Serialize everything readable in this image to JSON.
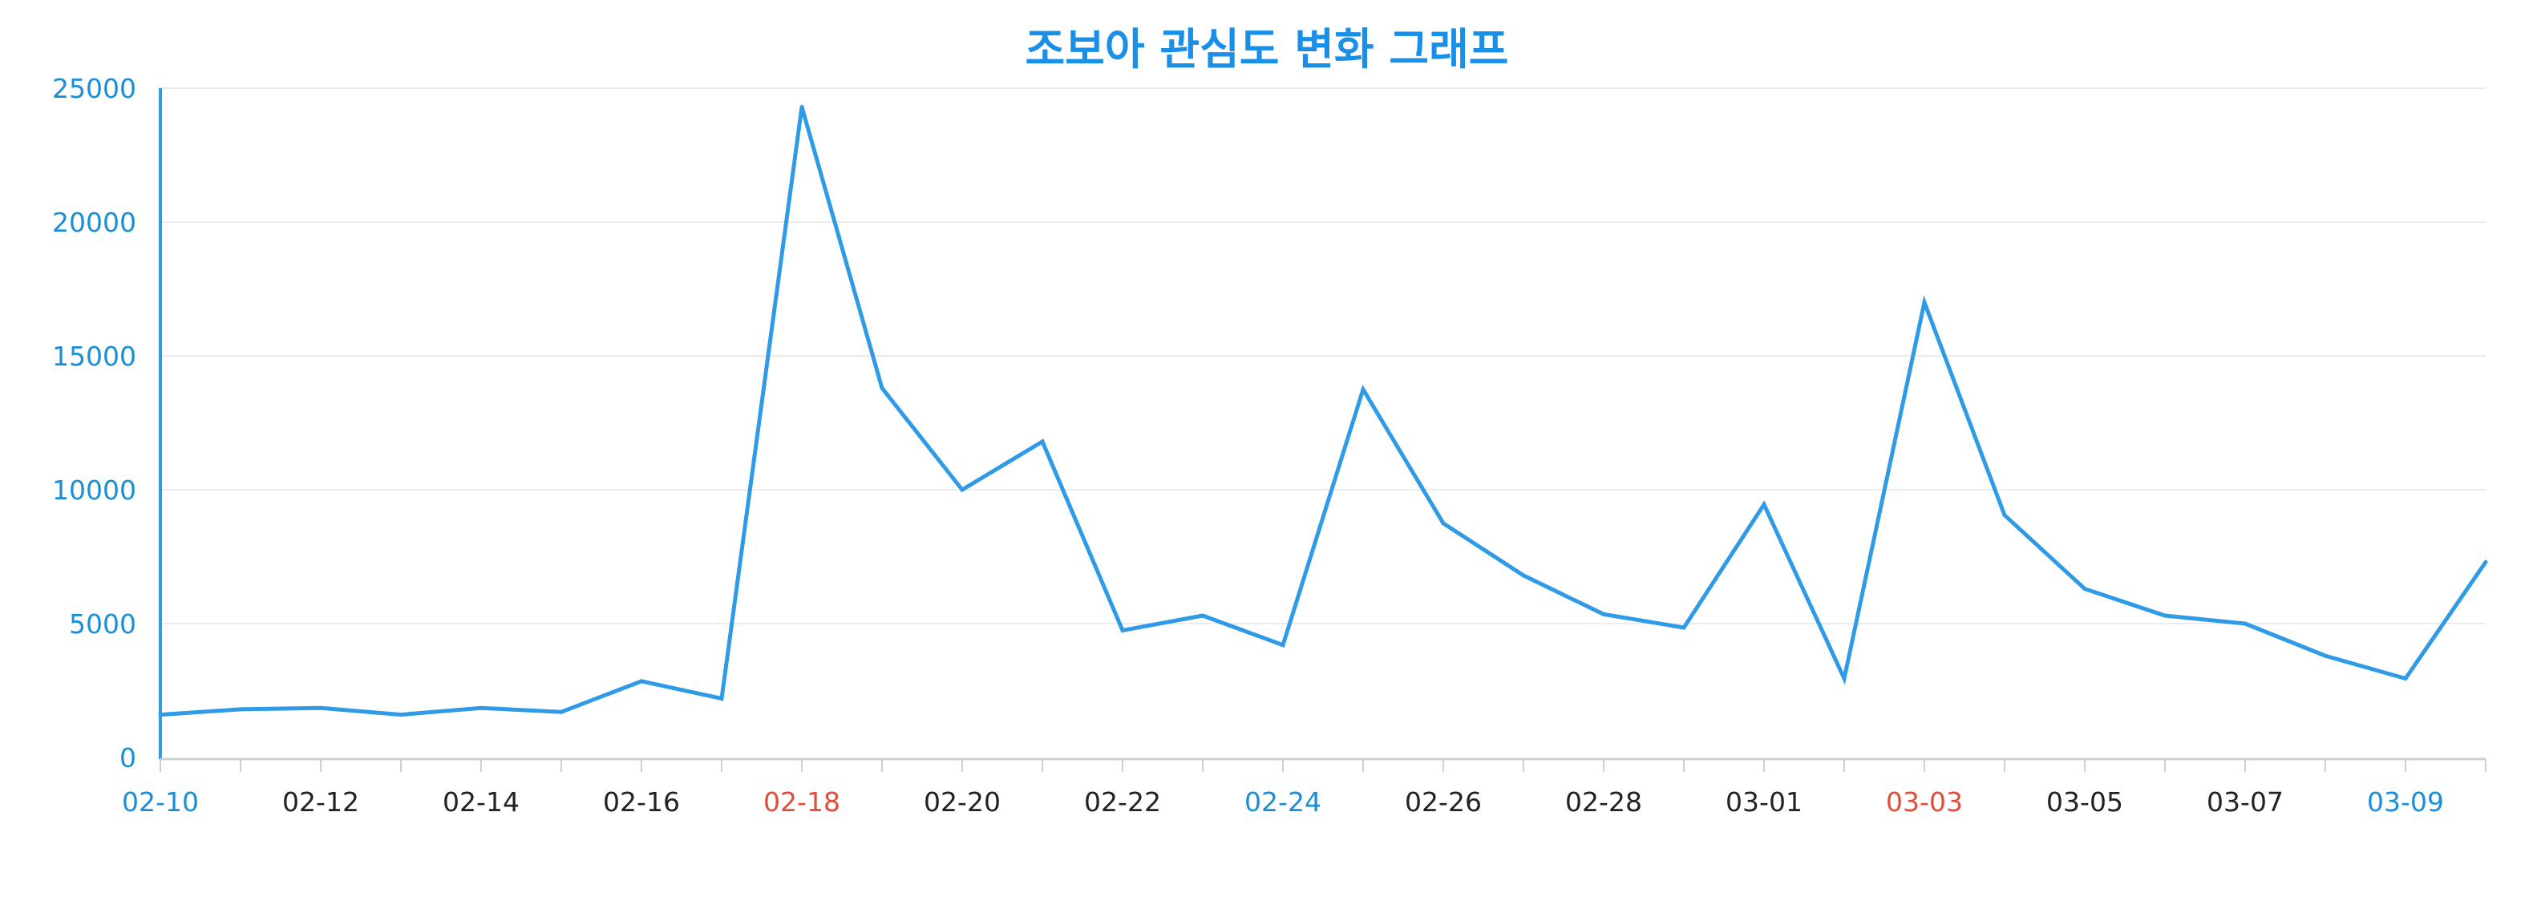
{
  "colors": {
    "series": "#2f9be6",
    "axis": "#2f9be6",
    "ytick": "#1a8fd8",
    "xtick_default": "#222222",
    "xtick_blue": "#1a8fd8",
    "xtick_red": "#e04e3a",
    "grid": "#ececec",
    "xaxis_line": "#d0d0d0",
    "title": "#1a8fe8"
  },
  "chart_data": {
    "type": "line",
    "title": "조보아 관심도 변화 그래프",
    "xlabel": "",
    "ylabel": "",
    "ylim": [
      0,
      25000
    ],
    "yticks": [
      0,
      5000,
      10000,
      15000,
      20000,
      25000
    ],
    "grid": true,
    "legend": "none",
    "x": [
      "02-10",
      "02-11",
      "02-12",
      "02-13",
      "02-14",
      "02-15",
      "02-16",
      "02-17",
      "02-18",
      "02-19",
      "02-20",
      "02-21",
      "02-22",
      "02-23",
      "02-24",
      "02-25",
      "02-26",
      "02-27",
      "02-28",
      "02-29",
      "03-01",
      "03-02",
      "03-03",
      "03-04",
      "03-05",
      "03-06",
      "03-07",
      "03-08",
      "03-09",
      "03-10"
    ],
    "xtick_labels": [
      {
        "label": "02-10",
        "color": "blue"
      },
      {
        "label": "02-12",
        "color": "default"
      },
      {
        "label": "02-14",
        "color": "default"
      },
      {
        "label": "02-16",
        "color": "default"
      },
      {
        "label": "02-18",
        "color": "red"
      },
      {
        "label": "02-20",
        "color": "default"
      },
      {
        "label": "02-22",
        "color": "default"
      },
      {
        "label": "02-24",
        "color": "blue"
      },
      {
        "label": "02-26",
        "color": "default"
      },
      {
        "label": "02-28",
        "color": "default"
      },
      {
        "label": "03-01",
        "color": "default"
      },
      {
        "label": "03-03",
        "color": "red"
      },
      {
        "label": "03-05",
        "color": "default"
      },
      {
        "label": "03-07",
        "color": "default"
      },
      {
        "label": "03-09",
        "color": "blue"
      }
    ],
    "series": [
      {
        "values": [
          1600,
          1800,
          1850,
          1600,
          1850,
          1700,
          2850,
          2200,
          24300,
          13800,
          10000,
          11800,
          4750,
          5300,
          4200,
          13750,
          8750,
          6800,
          5350,
          4850,
          9450,
          2950,
          17000,
          9050,
          6300,
          5300,
          5000,
          3800,
          2950,
          7300
        ]
      }
    ]
  }
}
